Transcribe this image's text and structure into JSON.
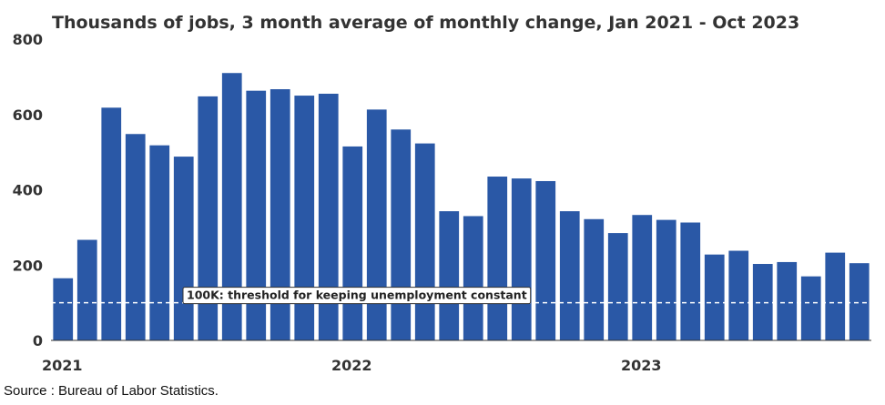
{
  "chart_data": {
    "type": "bar",
    "title": "Thousands of jobs, 3 month average of monthly change, Jan 2021 - Oct 2023",
    "xlabel": "",
    "ylabel": "",
    "ylim": [
      0,
      800
    ],
    "yticks": [
      "0",
      "200",
      "400",
      "600",
      "800"
    ],
    "xticks": [
      {
        "label": "2021",
        "index": 0
      },
      {
        "label": "2022",
        "index": 12
      },
      {
        "label": "2023",
        "index": 24
      }
    ],
    "grid": false,
    "categories": [
      "Jan 2021",
      "Feb 2021",
      "Mar 2021",
      "Apr 2021",
      "May 2021",
      "Jun 2021",
      "Jul 2021",
      "Aug 2021",
      "Sep 2021",
      "Oct 2021",
      "Nov 2021",
      "Dec 2021",
      "Jan 2022",
      "Feb 2022",
      "Mar 2022",
      "Apr 2022",
      "May 2022",
      "Jun 2022",
      "Jul 2022",
      "Aug 2022",
      "Sep 2022",
      "Oct 2022",
      "Nov 2022",
      "Dec 2022",
      "Jan 2023",
      "Feb 2023",
      "Mar 2023",
      "Apr 2023",
      "May 2023",
      "Jun 2023",
      "Jul 2023",
      "Aug 2023",
      "Sep 2023",
      "Oct 2023"
    ],
    "values": [
      165,
      267,
      618,
      548,
      518,
      488,
      648,
      710,
      663,
      667,
      650,
      655,
      515,
      613,
      560,
      523,
      343,
      330,
      435,
      430,
      423,
      343,
      322,
      285,
      333,
      320,
      313,
      228,
      238,
      203,
      208,
      170,
      233,
      205
    ],
    "bar_color": "#2a58a6",
    "reference_line": {
      "value": 100,
      "label": "100K: threshold for keeping unemployment constant",
      "color": "#ffffff"
    }
  },
  "source": "Source : Bureau of Labor Statistics."
}
